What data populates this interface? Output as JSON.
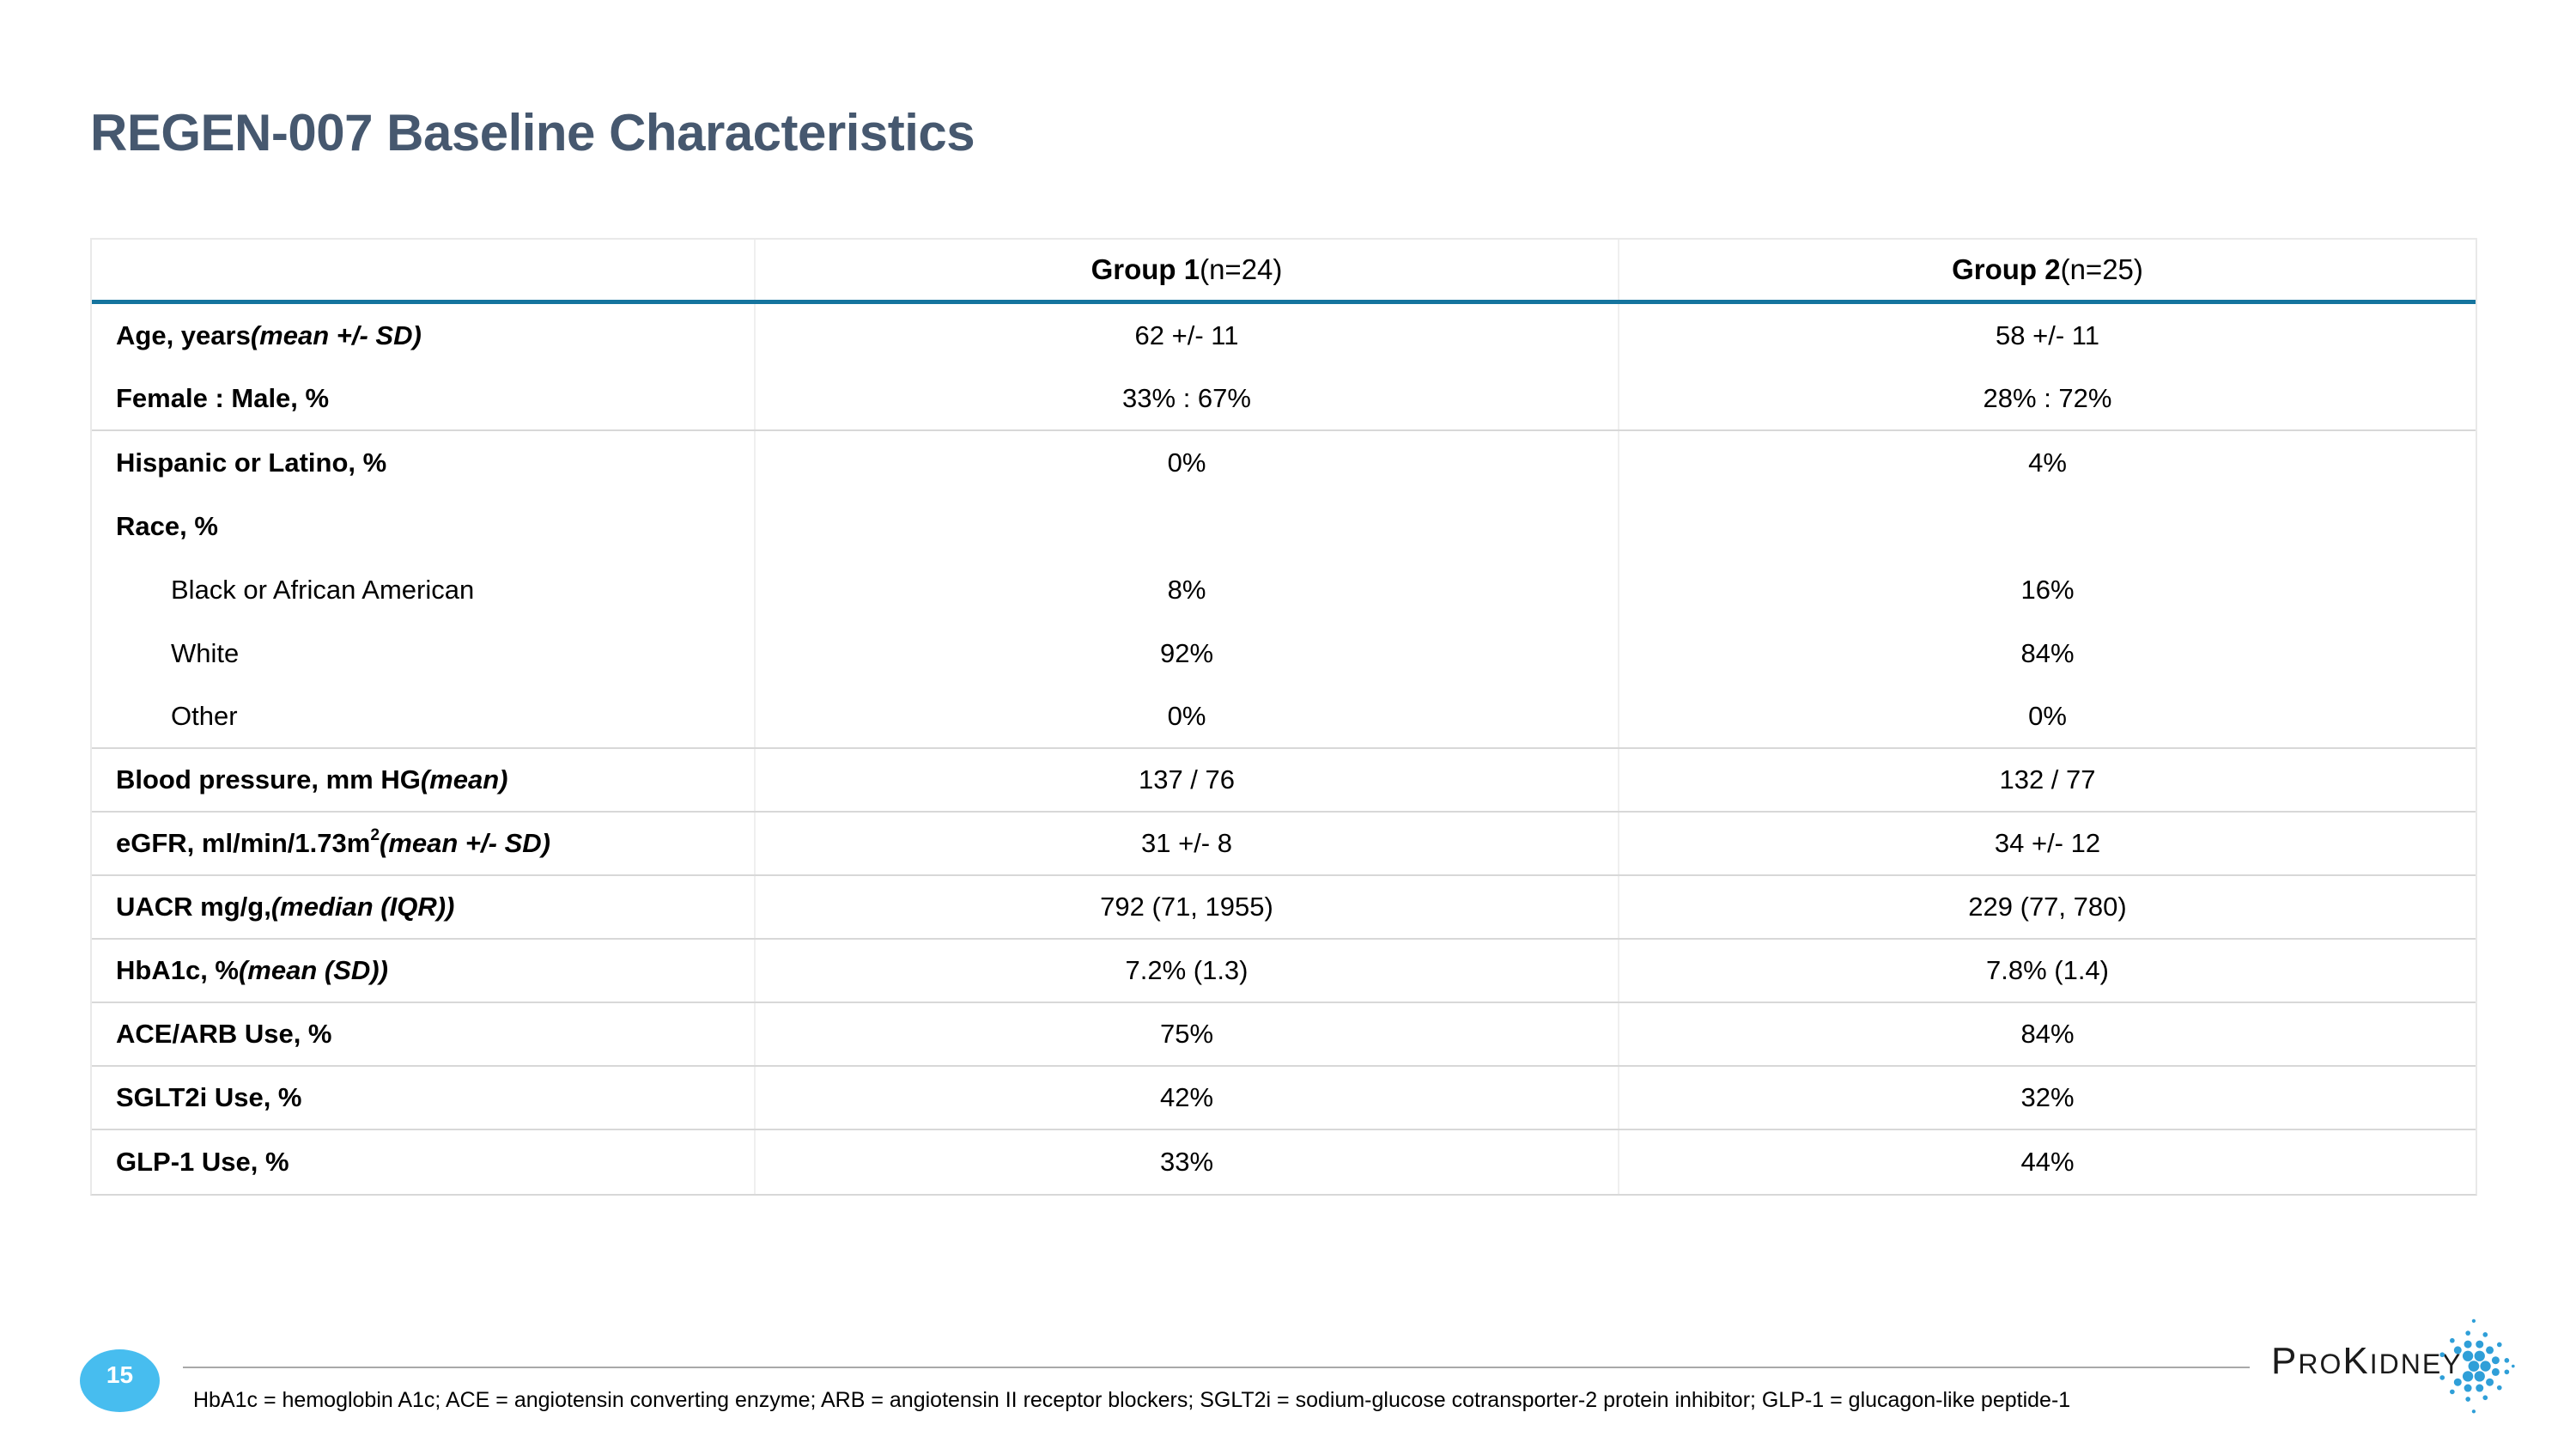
{
  "slide": {
    "title": "REGEN-007 Baseline Characteristics",
    "page_number": "15",
    "footnote": "HbA1c = hemoglobin A1c; ACE = angiotensin converting enzyme; ARB = angiotensin II receptor blockers; SGLT2i = sodium-glucose cotransporter-2 protein inhibitor; GLP-1 = glucagon-like peptide-1"
  },
  "colors": {
    "title_text": "#46586F",
    "accent_teal_rule": "#15749E",
    "page_badge_blue": "#47BDEF",
    "logo_dot_blue": "#2F9FD8",
    "row_divider_gray": "#D8D8D8"
  },
  "logo": {
    "brand_seg1_large": "P",
    "brand_seg2_small": "RO",
    "brand_seg3_large": "K",
    "brand_seg4_small": "IDNEY",
    "mark_icon_name": "prokidney-dots-mark-icon"
  },
  "table": {
    "header": {
      "label_col": "",
      "group1_segments": [
        {
          "t": "Group 1",
          "s": "b"
        },
        {
          "t": " (n=24)",
          "s": "r"
        }
      ],
      "group2_segments": [
        {
          "t": "Group 2",
          "s": "b"
        },
        {
          "t": " (n=25)",
          "s": "r"
        }
      ]
    },
    "rows": [
      {
        "label": [
          {
            "t": "Age, years ",
            "s": "b"
          },
          {
            "t": "(mean +/- SD)",
            "s": "bi"
          }
        ],
        "g1": "62 +/- 11",
        "g2": "58 +/- 11",
        "indent": false,
        "divider_after": false
      },
      {
        "label": [
          {
            "t": "Female : Male, %",
            "s": "b"
          }
        ],
        "g1": "33% : 67%",
        "g2": "28% : 72%",
        "indent": false,
        "divider_after": true
      },
      {
        "label": [
          {
            "t": "Hispanic or Latino, %",
            "s": "b"
          }
        ],
        "g1": "0%",
        "g2": "4%",
        "indent": false,
        "divider_after": false
      },
      {
        "label": [
          {
            "t": "Race, %",
            "s": "b"
          }
        ],
        "g1": "",
        "g2": "",
        "indent": false,
        "divider_after": false
      },
      {
        "label": [
          {
            "t": "Black or African American",
            "s": "r"
          }
        ],
        "g1": "8%",
        "g2": "16%",
        "indent": true,
        "divider_after": false
      },
      {
        "label": [
          {
            "t": "White",
            "s": "r"
          }
        ],
        "g1": "92%",
        "g2": "84%",
        "indent": true,
        "divider_after": false
      },
      {
        "label": [
          {
            "t": "Other",
            "s": "r"
          }
        ],
        "g1": "0%",
        "g2": "0%",
        "indent": true,
        "divider_after": true
      },
      {
        "label": [
          {
            "t": "Blood pressure, mm HG ",
            "s": "b"
          },
          {
            "t": "(mean)",
            "s": "bi"
          }
        ],
        "g1": "137 / 76",
        "g2": "132 / 77",
        "indent": false,
        "divider_after": true
      },
      {
        "label": [
          {
            "t": "eGFR, ml/min/1.73m",
            "s": "b"
          },
          {
            "t": "2",
            "s": "bsup"
          },
          {
            "t": " ",
            "s": "b"
          },
          {
            "t": "(mean +/- SD)",
            "s": "bi"
          }
        ],
        "g1": "31 +/- 8",
        "g2": "34 +/- 12",
        "indent": false,
        "divider_after": true
      },
      {
        "label": [
          {
            "t": "UACR mg/g, ",
            "s": "b"
          },
          {
            "t": "(median (IQR))",
            "s": "bi"
          }
        ],
        "g1": "792 (71, 1955)",
        "g2": "229 (77, 780)",
        "indent": false,
        "divider_after": true
      },
      {
        "label": [
          {
            "t": "HbA1c, % ",
            "s": "b"
          },
          {
            "t": "(mean (SD))",
            "s": "bi"
          }
        ],
        "g1": "7.2% (1.3)",
        "g2": "7.8% (1.4)",
        "indent": false,
        "divider_after": true
      },
      {
        "label": [
          {
            "t": "ACE/ARB Use, %",
            "s": "b"
          }
        ],
        "g1": "75%",
        "g2": "84%",
        "indent": false,
        "divider_after": true
      },
      {
        "label": [
          {
            "t": "SGLT2i Use, %",
            "s": "b"
          }
        ],
        "g1": "42%",
        "g2": "32%",
        "indent": false,
        "divider_after": true
      },
      {
        "label": [
          {
            "t": "GLP-1 Use, %",
            "s": "b"
          }
        ],
        "g1": "33%",
        "g2": "44%",
        "indent": false,
        "divider_after": false
      }
    ]
  }
}
